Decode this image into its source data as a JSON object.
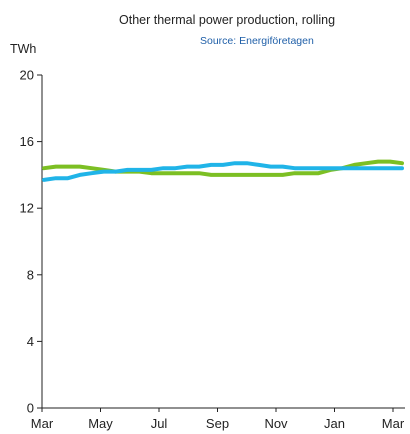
{
  "chart_data": {
    "type": "line",
    "title": "Other thermal power production, rolling",
    "subtitle": "Source: Energiföretagen",
    "xlabel": "",
    "ylabel": "TWh",
    "x_tick_labels": [
      "Mar",
      "May",
      "Jul",
      "Sep",
      "Nov",
      "Jan",
      "Mar"
    ],
    "ylim": [
      0,
      20
    ],
    "y_ticks": [
      0,
      4,
      8,
      12,
      16,
      20
    ],
    "grid": false,
    "legend": "none",
    "series": [
      {
        "color": "#7cbf23",
        "values": [
          14.4,
          14.5,
          14.5,
          14.5,
          14.4,
          14.3,
          14.2,
          14.2,
          14.2,
          14.1,
          14.1,
          14.1,
          14.1,
          14.1,
          14.0,
          14.0,
          14.0,
          14.0,
          14.0,
          14.0,
          14.0,
          14.1,
          14.1,
          14.1,
          14.3,
          14.4,
          14.6,
          14.7,
          14.8,
          14.8,
          14.7
        ]
      },
      {
        "color": "#20b4e8",
        "values": [
          13.7,
          13.8,
          13.8,
          14.0,
          14.1,
          14.2,
          14.2,
          14.3,
          14.3,
          14.3,
          14.4,
          14.4,
          14.5,
          14.5,
          14.6,
          14.6,
          14.7,
          14.7,
          14.6,
          14.5,
          14.5,
          14.4,
          14.4,
          14.4,
          14.4,
          14.4,
          14.4,
          14.4,
          14.4,
          14.4,
          14.4
        ]
      }
    ],
    "colors": {
      "source_text": "#1f5fa8",
      "axis": "#222222"
    }
  }
}
